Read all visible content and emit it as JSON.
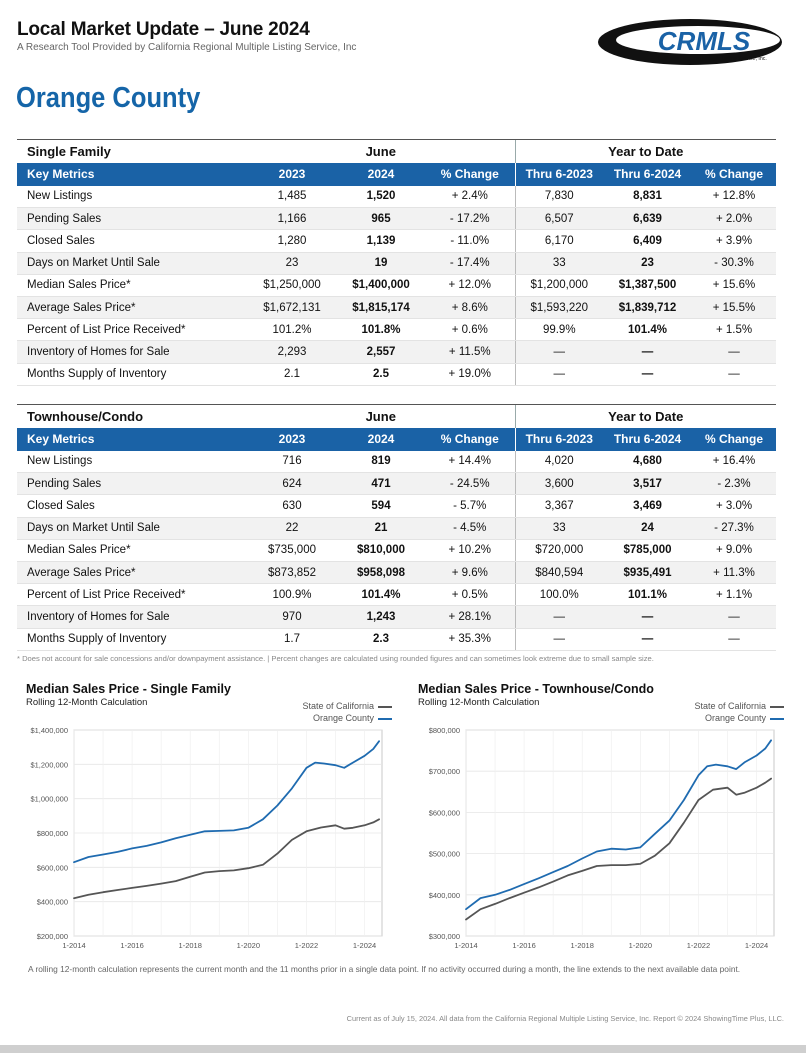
{
  "header": {
    "title": "Local Market Update – June 2024",
    "subtitle": "A Research Tool Provided by California Regional Multiple Listing Service, Inc",
    "logo_text": "CRMLS",
    "logo_tagline": "California Regional Multiple Listing Service, Inc.",
    "region": "Orange County"
  },
  "colors": {
    "accent": "#1a62a6",
    "state_line": "#555555",
    "county_line": "#1f6bb0"
  },
  "columns": {
    "key_metrics": "Key Metrics",
    "june": "June",
    "ytd": "Year to Date",
    "c2023": "2023",
    "c2024": "2024",
    "pct": "% Change",
    "thru2023": "Thru 6-2023",
    "thru2024": "Thru 6-2024"
  },
  "single_family": {
    "section": "Single Family",
    "rows": [
      {
        "metric": "New Listings",
        "m2023": "1,485",
        "m2024": "1,520",
        "mchg": "+ 2.4%",
        "y2023": "7,830",
        "y2024": "8,831",
        "ychg": "+ 12.8%"
      },
      {
        "metric": "Pending Sales",
        "m2023": "1,166",
        "m2024": "965",
        "mchg": "- 17.2%",
        "y2023": "6,507",
        "y2024": "6,639",
        "ychg": "+ 2.0%"
      },
      {
        "metric": "Closed Sales",
        "m2023": "1,280",
        "m2024": "1,139",
        "mchg": "- 11.0%",
        "y2023": "6,170",
        "y2024": "6,409",
        "ychg": "+ 3.9%"
      },
      {
        "metric": "Days on Market Until Sale",
        "m2023": "23",
        "m2024": "19",
        "mchg": "- 17.4%",
        "y2023": "33",
        "y2024": "23",
        "ychg": "- 30.3%"
      },
      {
        "metric": "Median Sales Price*",
        "m2023": "$1,250,000",
        "m2024": "$1,400,000",
        "mchg": "+ 12.0%",
        "y2023": "$1,200,000",
        "y2024": "$1,387,500",
        "ychg": "+ 15.6%"
      },
      {
        "metric": "Average Sales Price*",
        "m2023": "$1,672,131",
        "m2024": "$1,815,174",
        "mchg": "+ 8.6%",
        "y2023": "$1,593,220",
        "y2024": "$1,839,712",
        "ychg": "+ 15.5%"
      },
      {
        "metric": "Percent of List Price Received*",
        "m2023": "101.2%",
        "m2024": "101.8%",
        "mchg": "+ 0.6%",
        "y2023": "99.9%",
        "y2024": "101.4%",
        "ychg": "+ 1.5%"
      },
      {
        "metric": "Inventory of Homes for Sale",
        "m2023": "2,293",
        "m2024": "2,557",
        "mchg": "+ 11.5%",
        "y2023": "—",
        "y2024": "—",
        "ychg": "—"
      },
      {
        "metric": "Months Supply of Inventory",
        "m2023": "2.1",
        "m2024": "2.5",
        "mchg": "+ 19.0%",
        "y2023": "—",
        "y2024": "—",
        "ychg": "—"
      }
    ]
  },
  "townhouse": {
    "section": "Townhouse/Condo",
    "rows": [
      {
        "metric": "New Listings",
        "m2023": "716",
        "m2024": "819",
        "mchg": "+ 14.4%",
        "y2023": "4,020",
        "y2024": "4,680",
        "ychg": "+ 16.4%"
      },
      {
        "metric": "Pending Sales",
        "m2023": "624",
        "m2024": "471",
        "mchg": "- 24.5%",
        "y2023": "3,600",
        "y2024": "3,517",
        "ychg": "- 2.3%"
      },
      {
        "metric": "Closed Sales",
        "m2023": "630",
        "m2024": "594",
        "mchg": "- 5.7%",
        "y2023": "3,367",
        "y2024": "3,469",
        "ychg": "+ 3.0%"
      },
      {
        "metric": "Days on Market Until Sale",
        "m2023": "22",
        "m2024": "21",
        "mchg": "- 4.5%",
        "y2023": "33",
        "y2024": "24",
        "ychg": "- 27.3%"
      },
      {
        "metric": "Median Sales Price*",
        "m2023": "$735,000",
        "m2024": "$810,000",
        "mchg": "+ 10.2%",
        "y2023": "$720,000",
        "y2024": "$785,000",
        "ychg": "+ 9.0%"
      },
      {
        "metric": "Average Sales Price*",
        "m2023": "$873,852",
        "m2024": "$958,098",
        "mchg": "+ 9.6%",
        "y2023": "$840,594",
        "y2024": "$935,491",
        "ychg": "+ 11.3%"
      },
      {
        "metric": "Percent of List Price Received*",
        "m2023": "100.9%",
        "m2024": "101.4%",
        "mchg": "+ 0.5%",
        "y2023": "100.0%",
        "y2024": "101.1%",
        "ychg": "+ 1.1%"
      },
      {
        "metric": "Inventory of Homes for Sale",
        "m2023": "970",
        "m2024": "1,243",
        "mchg": "+ 28.1%",
        "y2023": "—",
        "y2024": "—",
        "ychg": "—"
      },
      {
        "metric": "Months Supply of Inventory",
        "m2023": "1.7",
        "m2024": "2.3",
        "mchg": "+ 35.3%",
        "y2023": "—",
        "y2024": "—",
        "ychg": "—"
      }
    ]
  },
  "footnote": "* Does not account for sale concessions and/or downpayment assistance. | Percent changes are calculated using rounded figures and can sometimes look extreme due to small sample size.",
  "chart_data": [
    {
      "type": "line",
      "title": "Median Sales Price - Single Family",
      "subtitle": "Rolling 12-Month Calculation",
      "x_ticks": [
        "1-2014",
        "1-2016",
        "1-2018",
        "1-2020",
        "1-2022",
        "1-2024"
      ],
      "x_range": [
        2014.0,
        2024.6
      ],
      "ylim": [
        200000,
        1400000
      ],
      "y_ticks": [
        200000,
        400000,
        600000,
        800000,
        1000000,
        1200000,
        1400000
      ],
      "y_tick_labels": [
        "$200,000",
        "$400,000",
        "$600,000",
        "$800,000",
        "$1,000,000",
        "$1,200,000",
        "$1,400,000"
      ],
      "series": [
        {
          "name": "State of California",
          "color": "#555555",
          "x": [
            2014.0,
            2014.5,
            2015.0,
            2015.5,
            2016.0,
            2016.5,
            2017.0,
            2017.5,
            2018.0,
            2018.5,
            2019.0,
            2019.5,
            2020.0,
            2020.5,
            2021.0,
            2021.5,
            2022.0,
            2022.5,
            2023.0,
            2023.3,
            2023.6,
            2024.0,
            2024.3,
            2024.5
          ],
          "values": [
            420000,
            440000,
            455000,
            468000,
            480000,
            492000,
            505000,
            520000,
            545000,
            570000,
            578000,
            582000,
            595000,
            615000,
            680000,
            760000,
            810000,
            832000,
            845000,
            825000,
            830000,
            845000,
            862000,
            880000
          ]
        },
        {
          "name": "Orange County",
          "color": "#1f6bb0",
          "x": [
            2014.0,
            2014.5,
            2015.0,
            2015.5,
            2016.0,
            2016.5,
            2017.0,
            2017.5,
            2018.0,
            2018.5,
            2019.0,
            2019.5,
            2020.0,
            2020.5,
            2021.0,
            2021.5,
            2022.0,
            2022.3,
            2022.6,
            2023.0,
            2023.3,
            2023.6,
            2024.0,
            2024.3,
            2024.5
          ],
          "values": [
            630000,
            660000,
            675000,
            690000,
            710000,
            725000,
            745000,
            770000,
            790000,
            810000,
            812000,
            815000,
            830000,
            880000,
            960000,
            1060000,
            1180000,
            1210000,
            1205000,
            1195000,
            1180000,
            1210000,
            1250000,
            1290000,
            1335000
          ]
        }
      ],
      "legend": "top-right"
    },
    {
      "type": "line",
      "title": "Median Sales Price - Townhouse/Condo",
      "subtitle": "Rolling 12-Month Calculation",
      "x_ticks": [
        "1-2014",
        "1-2016",
        "1-2018",
        "1-2020",
        "1-2022",
        "1-2024"
      ],
      "x_range": [
        2014.0,
        2024.6
      ],
      "ylim": [
        300000,
        800000
      ],
      "y_ticks": [
        300000,
        400000,
        500000,
        600000,
        700000,
        800000
      ],
      "y_tick_labels": [
        "$300,000",
        "$400,000",
        "$500,000",
        "$600,000",
        "$700,000",
        "$800,000"
      ],
      "series": [
        {
          "name": "State of California",
          "color": "#555555",
          "x": [
            2014.0,
            2014.5,
            2015.0,
            2015.5,
            2016.0,
            2016.5,
            2017.0,
            2017.5,
            2018.0,
            2018.5,
            2019.0,
            2019.5,
            2020.0,
            2020.5,
            2021.0,
            2021.5,
            2022.0,
            2022.5,
            2023.0,
            2023.3,
            2023.6,
            2024.0,
            2024.3,
            2024.5
          ],
          "values": [
            340000,
            365000,
            378000,
            392000,
            405000,
            418000,
            432000,
            447000,
            458000,
            470000,
            472000,
            472000,
            475000,
            495000,
            525000,
            575000,
            630000,
            655000,
            660000,
            643000,
            648000,
            660000,
            672000,
            682000
          ]
        },
        {
          "name": "Orange County",
          "color": "#1f6bb0",
          "x": [
            2014.0,
            2014.5,
            2015.0,
            2015.5,
            2016.0,
            2016.5,
            2017.0,
            2017.5,
            2018.0,
            2018.5,
            2019.0,
            2019.5,
            2020.0,
            2020.5,
            2021.0,
            2021.5,
            2022.0,
            2022.3,
            2022.6,
            2023.0,
            2023.3,
            2023.6,
            2024.0,
            2024.3,
            2024.5
          ],
          "values": [
            365000,
            392000,
            400000,
            412000,
            426000,
            440000,
            455000,
            470000,
            488000,
            505000,
            512000,
            510000,
            515000,
            548000,
            580000,
            630000,
            690000,
            712000,
            716000,
            712000,
            705000,
            722000,
            738000,
            755000,
            775000
          ]
        }
      ],
      "legend": "top-right"
    }
  ],
  "chart_note": "A rolling 12-month calculation represents the current month and the 11 months prior in a single data point. If no activity occurred during a month, the line extends to the next available data point.",
  "bottom_note": "Current as of July 15, 2024. All data from the California Regional Multiple Listing Service, Inc. Report © 2024 ShowingTime Plus, LLC."
}
